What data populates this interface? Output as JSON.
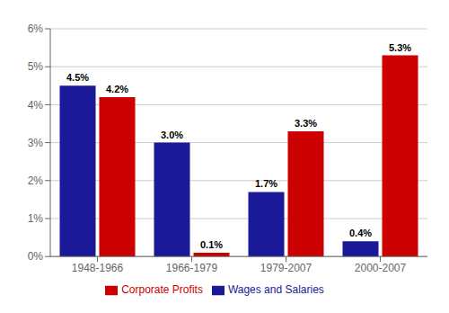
{
  "chart_data": {
    "type": "bar",
    "categories": [
      "1948-1966",
      "1966-1979",
      "1979-2007",
      "2000-2007"
    ],
    "series": [
      {
        "name": "Wages and Salaries",
        "color": "#1a1a99",
        "values": [
          4.5,
          3.0,
          1.7,
          0.4
        ],
        "value_labels": [
          "4.5%",
          "3.0%",
          "1.7%",
          "0.4%"
        ]
      },
      {
        "name": "Corporate Profits",
        "color": "#cc0000",
        "values": [
          4.2,
          0.1,
          3.3,
          5.3
        ],
        "value_labels": [
          "4.2%",
          "0.1%",
          "3.3%",
          "5.3%"
        ]
      }
    ],
    "ylim": [
      0,
      6.0
    ],
    "yticks": [
      {
        "value": 0,
        "label": "0%"
      },
      {
        "value": 1,
        "label": "1%"
      },
      {
        "value": 2,
        "label": "2%"
      },
      {
        "value": 3,
        "label": "3%"
      },
      {
        "value": 4,
        "label": "4%"
      },
      {
        "value": 5,
        "label": "5%"
      },
      {
        "value": 6,
        "label": "6%"
      }
    ],
    "grid": true,
    "data_labels": true,
    "legend": "bottom"
  }
}
